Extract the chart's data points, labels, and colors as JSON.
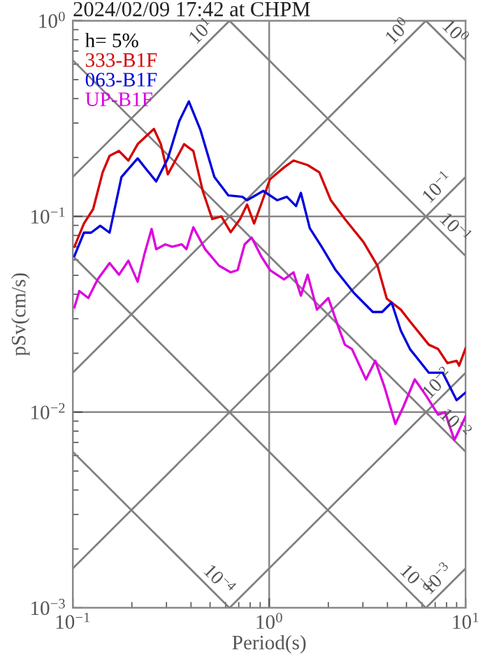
{
  "chart_data": {
    "type": "line",
    "title": "2024/02/09 17:42 at CHPM",
    "xlabel": "Period(s)",
    "ylabel": "pSv(cm/s)",
    "legend_title": "h= 5%",
    "legend": "top left",
    "log": "xy",
    "grid": true,
    "xlim": [
      0.1,
      10
    ],
    "ylim": [
      0.001,
      1
    ],
    "annotations": [
      {
        "text": "10$^{1}$",
        "x": 0.628,
        "y": 1.0
      },
      {
        "text": "10$^{0}$",
        "x": 6.28,
        "y": 1.0
      },
      {
        "text": "10$^{−1}$",
        "x": 10,
        "y": 0.159
      },
      {
        "text": "10$^{−2}$",
        "x": 10,
        "y": 0.0159
      },
      {
        "text": "10$^{−3}$",
        "x": 10,
        "y": 0.00159
      },
      {
        "text": "10$^{0}$",
        "x": 10,
        "y": 0.628
      },
      {
        "text": "10$^{−1}$",
        "x": 10,
        "y": 0.0628
      },
      {
        "text": "10$^{−2}$",
        "x": 10,
        "y": 0.00628
      },
      {
        "text": "10$^{−3}$",
        "x": 6.28,
        "y": 0.001
      },
      {
        "text": "10$^{−4}$",
        "x": 0.628,
        "y": 0.001
      }
    ],
    "xticks": [
      {
        "value": 0.1,
        "label": "10$^{−1}$"
      },
      {
        "value": 1,
        "label": "10$^{0}$"
      },
      {
        "value": 10,
        "label": "10$^{1}$"
      }
    ],
    "yticks": [
      {
        "value": 0.001,
        "label": "10$^{−3}$"
      },
      {
        "value": 0.01,
        "label": "10$^{−2}$"
      },
      {
        "value": 0.1,
        "label": "10$^{−1}$"
      },
      {
        "value": 1,
        "label": "10$^{0}$"
      }
    ],
    "series": [
      {
        "color": "#808080",
        "x": [
          0.1,
          0.628
        ],
        "values": [
          0.159,
          1.0
        ]
      },
      {
        "color": "#808080",
        "x": [
          0.1,
          6.28
        ],
        "values": [
          0.0159,
          1.0
        ]
      },
      {
        "color": "#808080",
        "x": [
          0.1,
          10
        ],
        "values": [
          0.00159,
          0.159
        ]
      },
      {
        "color": "#808080",
        "x": [
          0.628,
          10
        ],
        "values": [
          0.001,
          0.0159
        ]
      },
      {
        "color": "#808080",
        "x": [
          6.28,
          10
        ],
        "values": [
          0.001,
          0.00159
        ]
      },
      {
        "color": "#808080",
        "x": [
          6.28,
          10
        ],
        "values": [
          1.0,
          0.628
        ]
      },
      {
        "color": "#808080",
        "x": [
          0.628,
          10
        ],
        "values": [
          1.0,
          0.0628
        ]
      },
      {
        "color": "#808080",
        "x": [
          0.1,
          10
        ],
        "values": [
          0.628,
          0.00628
        ]
      },
      {
        "color": "#808080",
        "x": [
          0.1,
          6.28
        ],
        "values": [
          0.0628,
          0.001
        ]
      },
      {
        "color": "#808080",
        "x": [
          0.1,
          0.628
        ],
        "values": [
          0.00628,
          0.001
        ]
      },
      {
        "name": "333-B1F",
        "color": "#d40000",
        "x": [
          0.102,
          0.114,
          0.127,
          0.142,
          0.154,
          0.172,
          0.192,
          0.214,
          0.259,
          0.281,
          0.305,
          0.369,
          0.411,
          0.459,
          0.513,
          0.571,
          0.637,
          0.711,
          0.772,
          0.838,
          0.909,
          1.01,
          1.19,
          1.33,
          1.57,
          1.8,
          2.06,
          2.43,
          3.02,
          3.56,
          3.97,
          4.68,
          5.21,
          6.5,
          7.25,
          8.08,
          9.0,
          9.27,
          10
        ],
        "values": [
          0.07,
          0.092,
          0.109,
          0.168,
          0.204,
          0.216,
          0.193,
          0.234,
          0.28,
          0.234,
          0.164,
          0.234,
          0.216,
          0.135,
          0.097,
          0.1,
          0.083,
          0.097,
          0.115,
          0.092,
          0.115,
          0.155,
          0.178,
          0.193,
          0.183,
          0.168,
          0.121,
          0.097,
          0.074,
          0.056,
          0.038,
          0.0334,
          0.0291,
          0.0221,
          0.021,
          0.0178,
          0.0183,
          0.0173,
          0.0212
        ]
      },
      {
        "name": "063-B1F",
        "color": "#0000dd",
        "x": [
          0.102,
          0.114,
          0.124,
          0.138,
          0.154,
          0.177,
          0.214,
          0.238,
          0.266,
          0.305,
          0.349,
          0.39,
          0.447,
          0.526,
          0.62,
          0.73,
          0.772,
          0.933,
          1.1,
          1.23,
          1.37,
          1.45,
          1.61,
          1.85,
          2.18,
          2.71,
          3.37,
          3.76,
          4.2,
          4.68,
          5.21,
          6.5,
          7.65,
          9.0,
          10
        ],
        "values": [
          0.0628,
          0.0826,
          0.0826,
          0.0896,
          0.0826,
          0.159,
          0.198,
          0.173,
          0.151,
          0.198,
          0.308,
          0.387,
          0.276,
          0.159,
          0.128,
          0.126,
          0.121,
          0.135,
          0.121,
          0.126,
          0.113,
          0.132,
          0.087,
          0.07,
          0.0532,
          0.0405,
          0.0325,
          0.0325,
          0.0363,
          0.0261,
          0.021,
          0.0159,
          0.0159,
          0.0115,
          0.0126
        ]
      },
      {
        "name": "UP-B1F",
        "color": "#dd00dd",
        "x": [
          0.102,
          0.108,
          0.12,
          0.134,
          0.154,
          0.172,
          0.192,
          0.214,
          0.232,
          0.252,
          0.266,
          0.296,
          0.321,
          0.359,
          0.379,
          0.411,
          0.472,
          0.556,
          0.637,
          0.691,
          0.75,
          0.814,
          0.909,
          1.01,
          1.19,
          1.33,
          1.45,
          1.57,
          1.75,
          2.0,
          2.24,
          2.43,
          2.64,
          3.11,
          3.47,
          3.86,
          4.39,
          4.81,
          5.51,
          6.31,
          7.25,
          7.85,
          8.77,
          10
        ],
        "values": [
          0.0343,
          0.0416,
          0.0383,
          0.0477,
          0.0578,
          0.0504,
          0.0594,
          0.0464,
          0.0645,
          0.0863,
          0.068,
          0.072,
          0.07,
          0.072,
          0.068,
          0.088,
          0.068,
          0.056,
          0.0518,
          0.0532,
          0.072,
          0.078,
          0.0628,
          0.0532,
          0.0477,
          0.0518,
          0.0394,
          0.0504,
          0.0334,
          0.0383,
          0.0276,
          0.0221,
          0.021,
          0.0147,
          0.0183,
          0.0135,
          0.0087,
          0.0106,
          0.0147,
          0.0121,
          0.0097,
          0.01,
          0.0072,
          0.0095
        ]
      }
    ]
  }
}
